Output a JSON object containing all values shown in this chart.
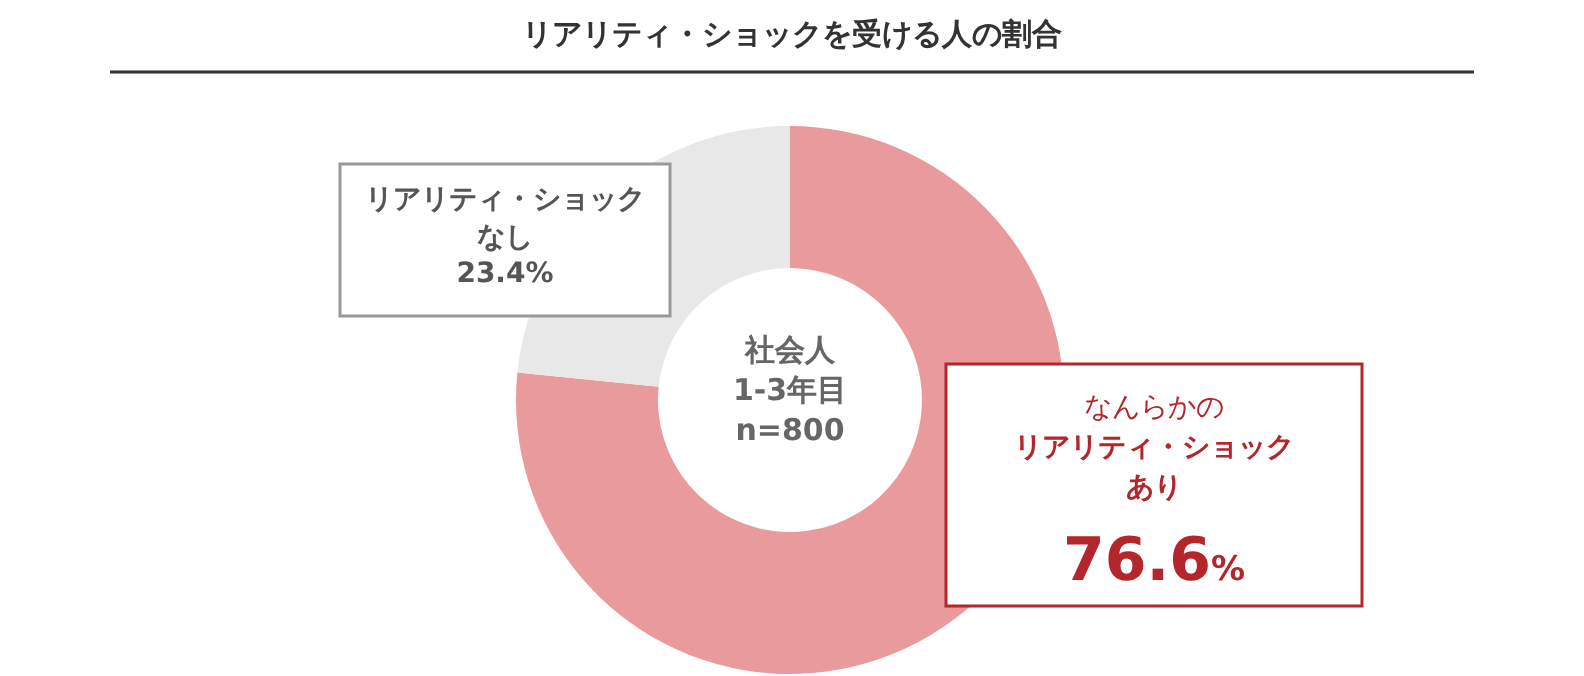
{
  "chart_data": {
    "type": "donut",
    "title": "リアリティ・ショックを受ける人の割合",
    "categories": [
      "なんらかのリアリティ・ショックあり",
      "リアリティ・ショックなし"
    ],
    "values": [
      76.6,
      23.4
    ],
    "colors": [
      "#e99a9d",
      "#e8e8e8"
    ],
    "value_labels": [
      "76.6%",
      "23.4%"
    ],
    "annotations": [
      "社会人\n1-3年目\nn=800"
    ]
  }
}
